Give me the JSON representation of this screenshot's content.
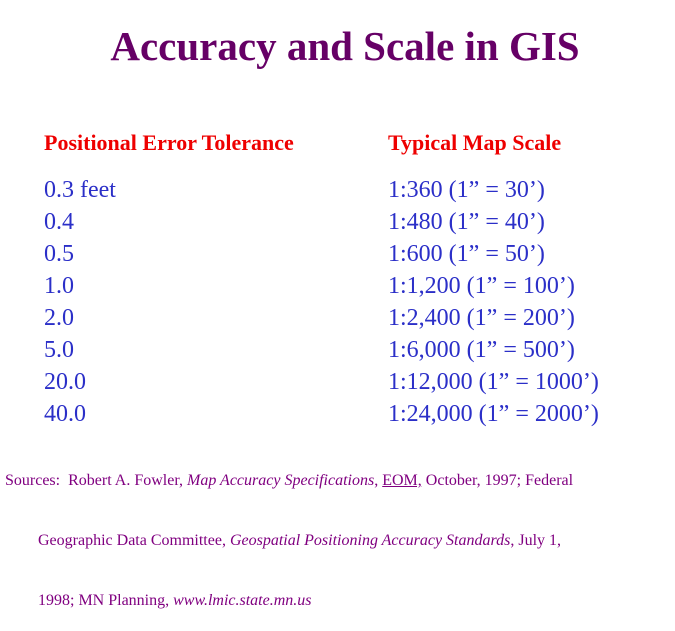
{
  "page": {
    "title": "Accuracy and Scale in GIS"
  },
  "colors": {
    "title_purple": "#660066",
    "header_red": "#ee0000",
    "body_blue": "#2b2fc8",
    "sources_purple": "#800080",
    "background": "#ffffff"
  },
  "table": {
    "headers": {
      "left": "Positional Error Tolerance",
      "right": "Typical Map Scale"
    },
    "rows": [
      {
        "tolerance": "0.3 feet",
        "scale": "1:360 (1” = 30’)"
      },
      {
        "tolerance": "0.4",
        "scale": "1:480 (1” = 40’)"
      },
      {
        "tolerance": "0.5",
        "scale": "1:600 (1” = 50’)"
      },
      {
        "tolerance": "1.0",
        "scale": "1:1,200 (1” = 100’)"
      },
      {
        "tolerance": "2.0",
        "scale": "1:2,400 (1” = 200’)"
      },
      {
        "tolerance": "5.0",
        "scale": "1:6,000 (1” = 500’)"
      },
      {
        "tolerance": "20.0",
        "scale": "1:12,000 (1” = 1000’)"
      },
      {
        "tolerance": "40.0",
        "scale": "1:24,000 (1” = 2000’)"
      }
    ]
  },
  "footer": {
    "lines": [
      {
        "segments": [
          {
            "text": "Sources:  Robert A. Fowler, ",
            "style": "normal"
          },
          {
            "text": "Map Accuracy Specifications",
            "style": "italic"
          },
          {
            "text": ", ",
            "style": "normal"
          },
          {
            "text": "EOM,",
            "style": "underline"
          },
          {
            "text": " October, 1997; Federal",
            "style": "normal"
          }
        ]
      },
      {
        "segments": [
          {
            "text": "Geographic Data Committee, ",
            "style": "normal"
          },
          {
            "text": "Geospatial Positioning Accuracy Standards",
            "style": "italic"
          },
          {
            "text": ", July 1,",
            "style": "normal"
          }
        ]
      },
      {
        "segments": [
          {
            "text": "1998; MN Planning, ",
            "style": "normal"
          },
          {
            "text": "www.lmic.state.mn.us",
            "style": "italic"
          }
        ]
      }
    ]
  }
}
